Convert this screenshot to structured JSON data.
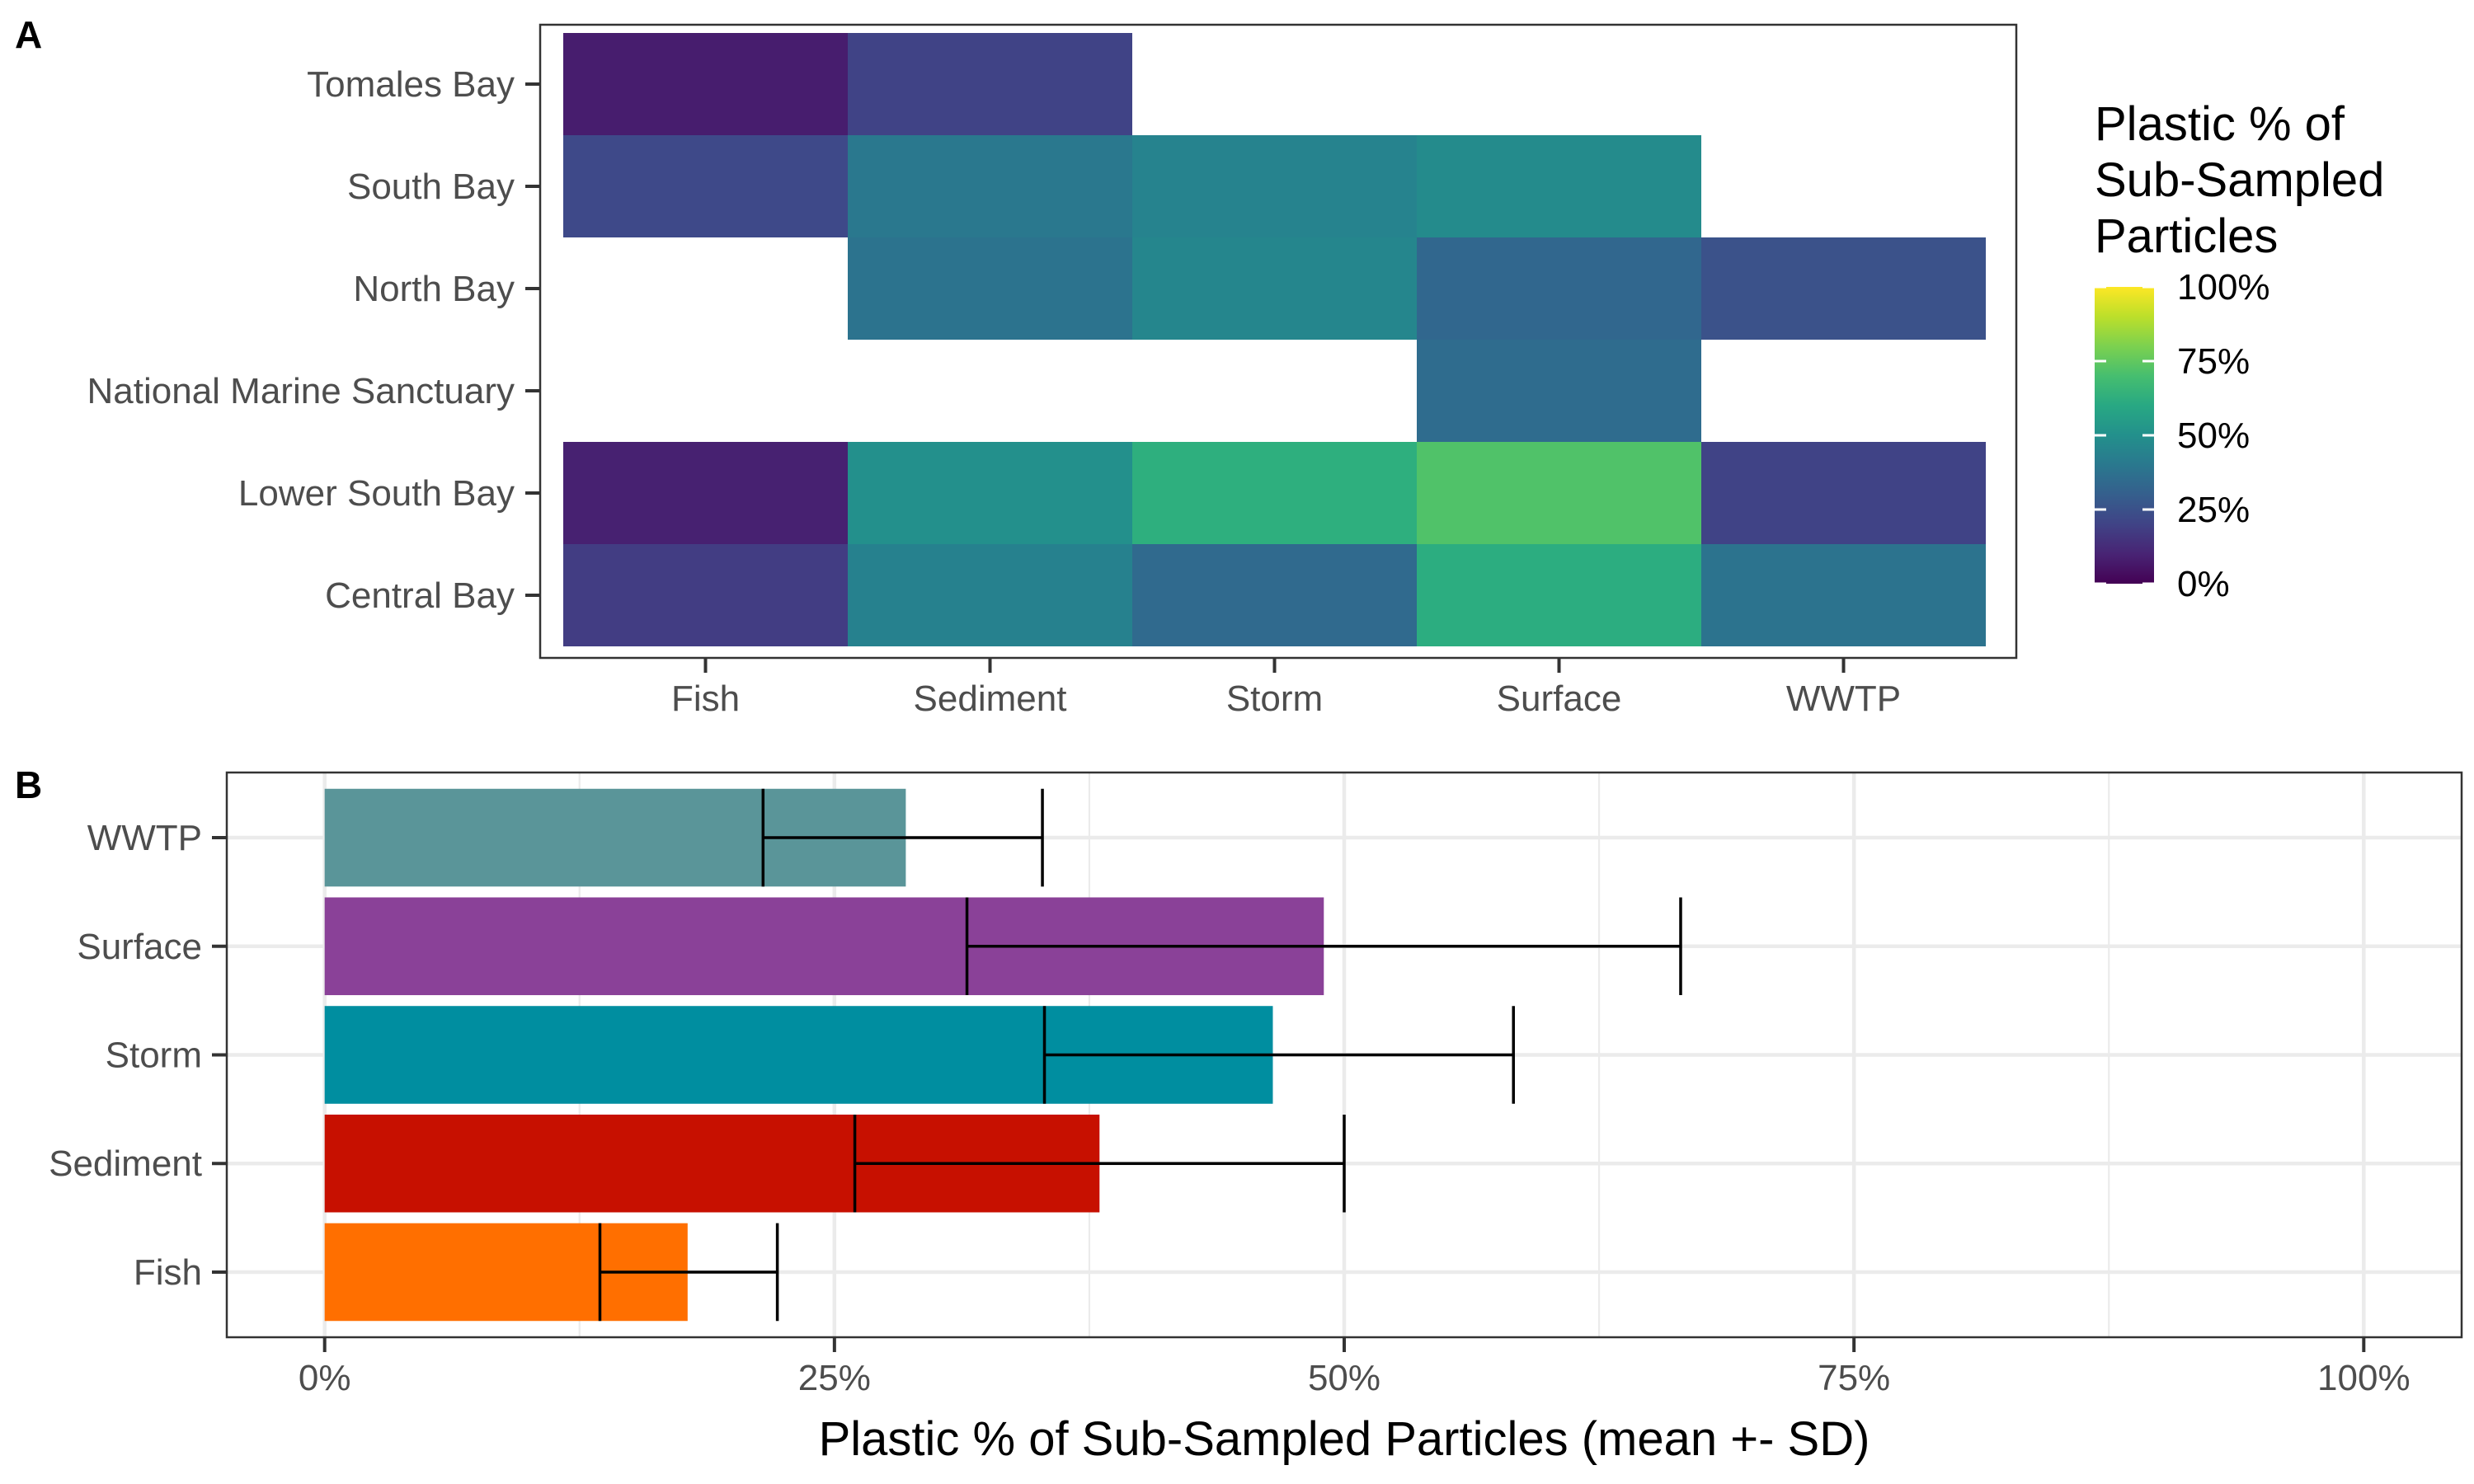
{
  "chart_data": [
    {
      "panel": "A",
      "type": "heatmap",
      "x_categories": [
        "Fish",
        "Sediment",
        "Storm",
        "Surface",
        "WWTP"
      ],
      "y_categories": [
        "Central Bay",
        "Lower South Bay",
        "National Marine Sanctuary",
        "North Bay",
        "South Bay",
        "Tomales Bay"
      ],
      "cells": [
        {
          "y": "Tomales Bay",
          "x": "Fish",
          "value": 8
        },
        {
          "y": "Tomales Bay",
          "x": "Sediment",
          "value": 20
        },
        {
          "y": "South Bay",
          "x": "Fish",
          "value": 22
        },
        {
          "y": "South Bay",
          "x": "Sediment",
          "value": 40
        },
        {
          "y": "South Bay",
          "x": "Storm",
          "value": 45
        },
        {
          "y": "South Bay",
          "x": "Surface",
          "value": 48
        },
        {
          "y": "North Bay",
          "x": "Sediment",
          "value": 38
        },
        {
          "y": "North Bay",
          "x": "Storm",
          "value": 46
        },
        {
          "y": "North Bay",
          "x": "Surface",
          "value": 33
        },
        {
          "y": "North Bay",
          "x": "WWTP",
          "value": 25
        },
        {
          "y": "National Marine Sanctuary",
          "x": "Surface",
          "value": 35
        },
        {
          "y": "Lower South Bay",
          "x": "Fish",
          "value": 9
        },
        {
          "y": "Lower South Bay",
          "x": "Sediment",
          "value": 50
        },
        {
          "y": "Lower South Bay",
          "x": "Storm",
          "value": 63
        },
        {
          "y": "Lower South Bay",
          "x": "Surface",
          "value": 72
        },
        {
          "y": "Lower South Bay",
          "x": "WWTP",
          "value": 20
        },
        {
          "y": "Central Bay",
          "x": "Fish",
          "value": 18
        },
        {
          "y": "Central Bay",
          "x": "Sediment",
          "value": 44
        },
        {
          "y": "Central Bay",
          "x": "Storm",
          "value": 34
        },
        {
          "y": "Central Bay",
          "x": "Surface",
          "value": 62
        },
        {
          "y": "Central Bay",
          "x": "WWTP",
          "value": 38
        }
      ],
      "colorscale": "viridis",
      "value_range": [
        0,
        100
      ],
      "legend": {
        "title_lines": [
          "Plastic % of",
          "Sub-Sampled",
          "Particles"
        ],
        "ticks": [
          {
            "value": 100,
            "label": "100%"
          },
          {
            "value": 75,
            "label": "75%"
          },
          {
            "value": 50,
            "label": "50%"
          },
          {
            "value": 25,
            "label": "25%"
          },
          {
            "value": 0,
            "label": "0%"
          }
        ],
        "placement": "right"
      },
      "grid": false
    },
    {
      "panel": "B",
      "type": "bar",
      "orientation": "horizontal",
      "categories": [
        "Fish",
        "Sediment",
        "Storm",
        "Surface",
        "WWTP"
      ],
      "values": [
        17.8,
        38.0,
        46.5,
        49.0,
        28.5
      ],
      "sd_bar_value": [
        13.5,
        26.0,
        35.3,
        31.5,
        21.5
      ],
      "errors": [
        {
          "category": "Fish",
          "low": 13.5,
          "high": 22.2
        },
        {
          "category": "Sediment",
          "low": 26.0,
          "high": 50.0
        },
        {
          "category": "Storm",
          "low": 35.3,
          "high": 58.3
        },
        {
          "category": "Surface",
          "low": 31.5,
          "high": 66.5
        },
        {
          "category": "WWTP",
          "low": 21.5,
          "high": 35.2
        }
      ],
      "colors": {
        "Fish": "#ff6f00",
        "Sediment": "#c71000",
        "Storm": "#008ea0",
        "Surface": "#8a4198",
        "WWTP": "#5a9599"
      },
      "xlabel": "Plastic % of Sub-Sampled Particles (mean +- SD)",
      "xlim": [
        -4.8,
        104.8
      ],
      "xticks": [
        {
          "value": 0,
          "label": "0%"
        },
        {
          "value": 25,
          "label": "25%"
        },
        {
          "value": 50,
          "label": "50%"
        },
        {
          "value": 75,
          "label": "75%"
        },
        {
          "value": 100,
          "label": "100%"
        }
      ],
      "grid": true
    }
  ]
}
